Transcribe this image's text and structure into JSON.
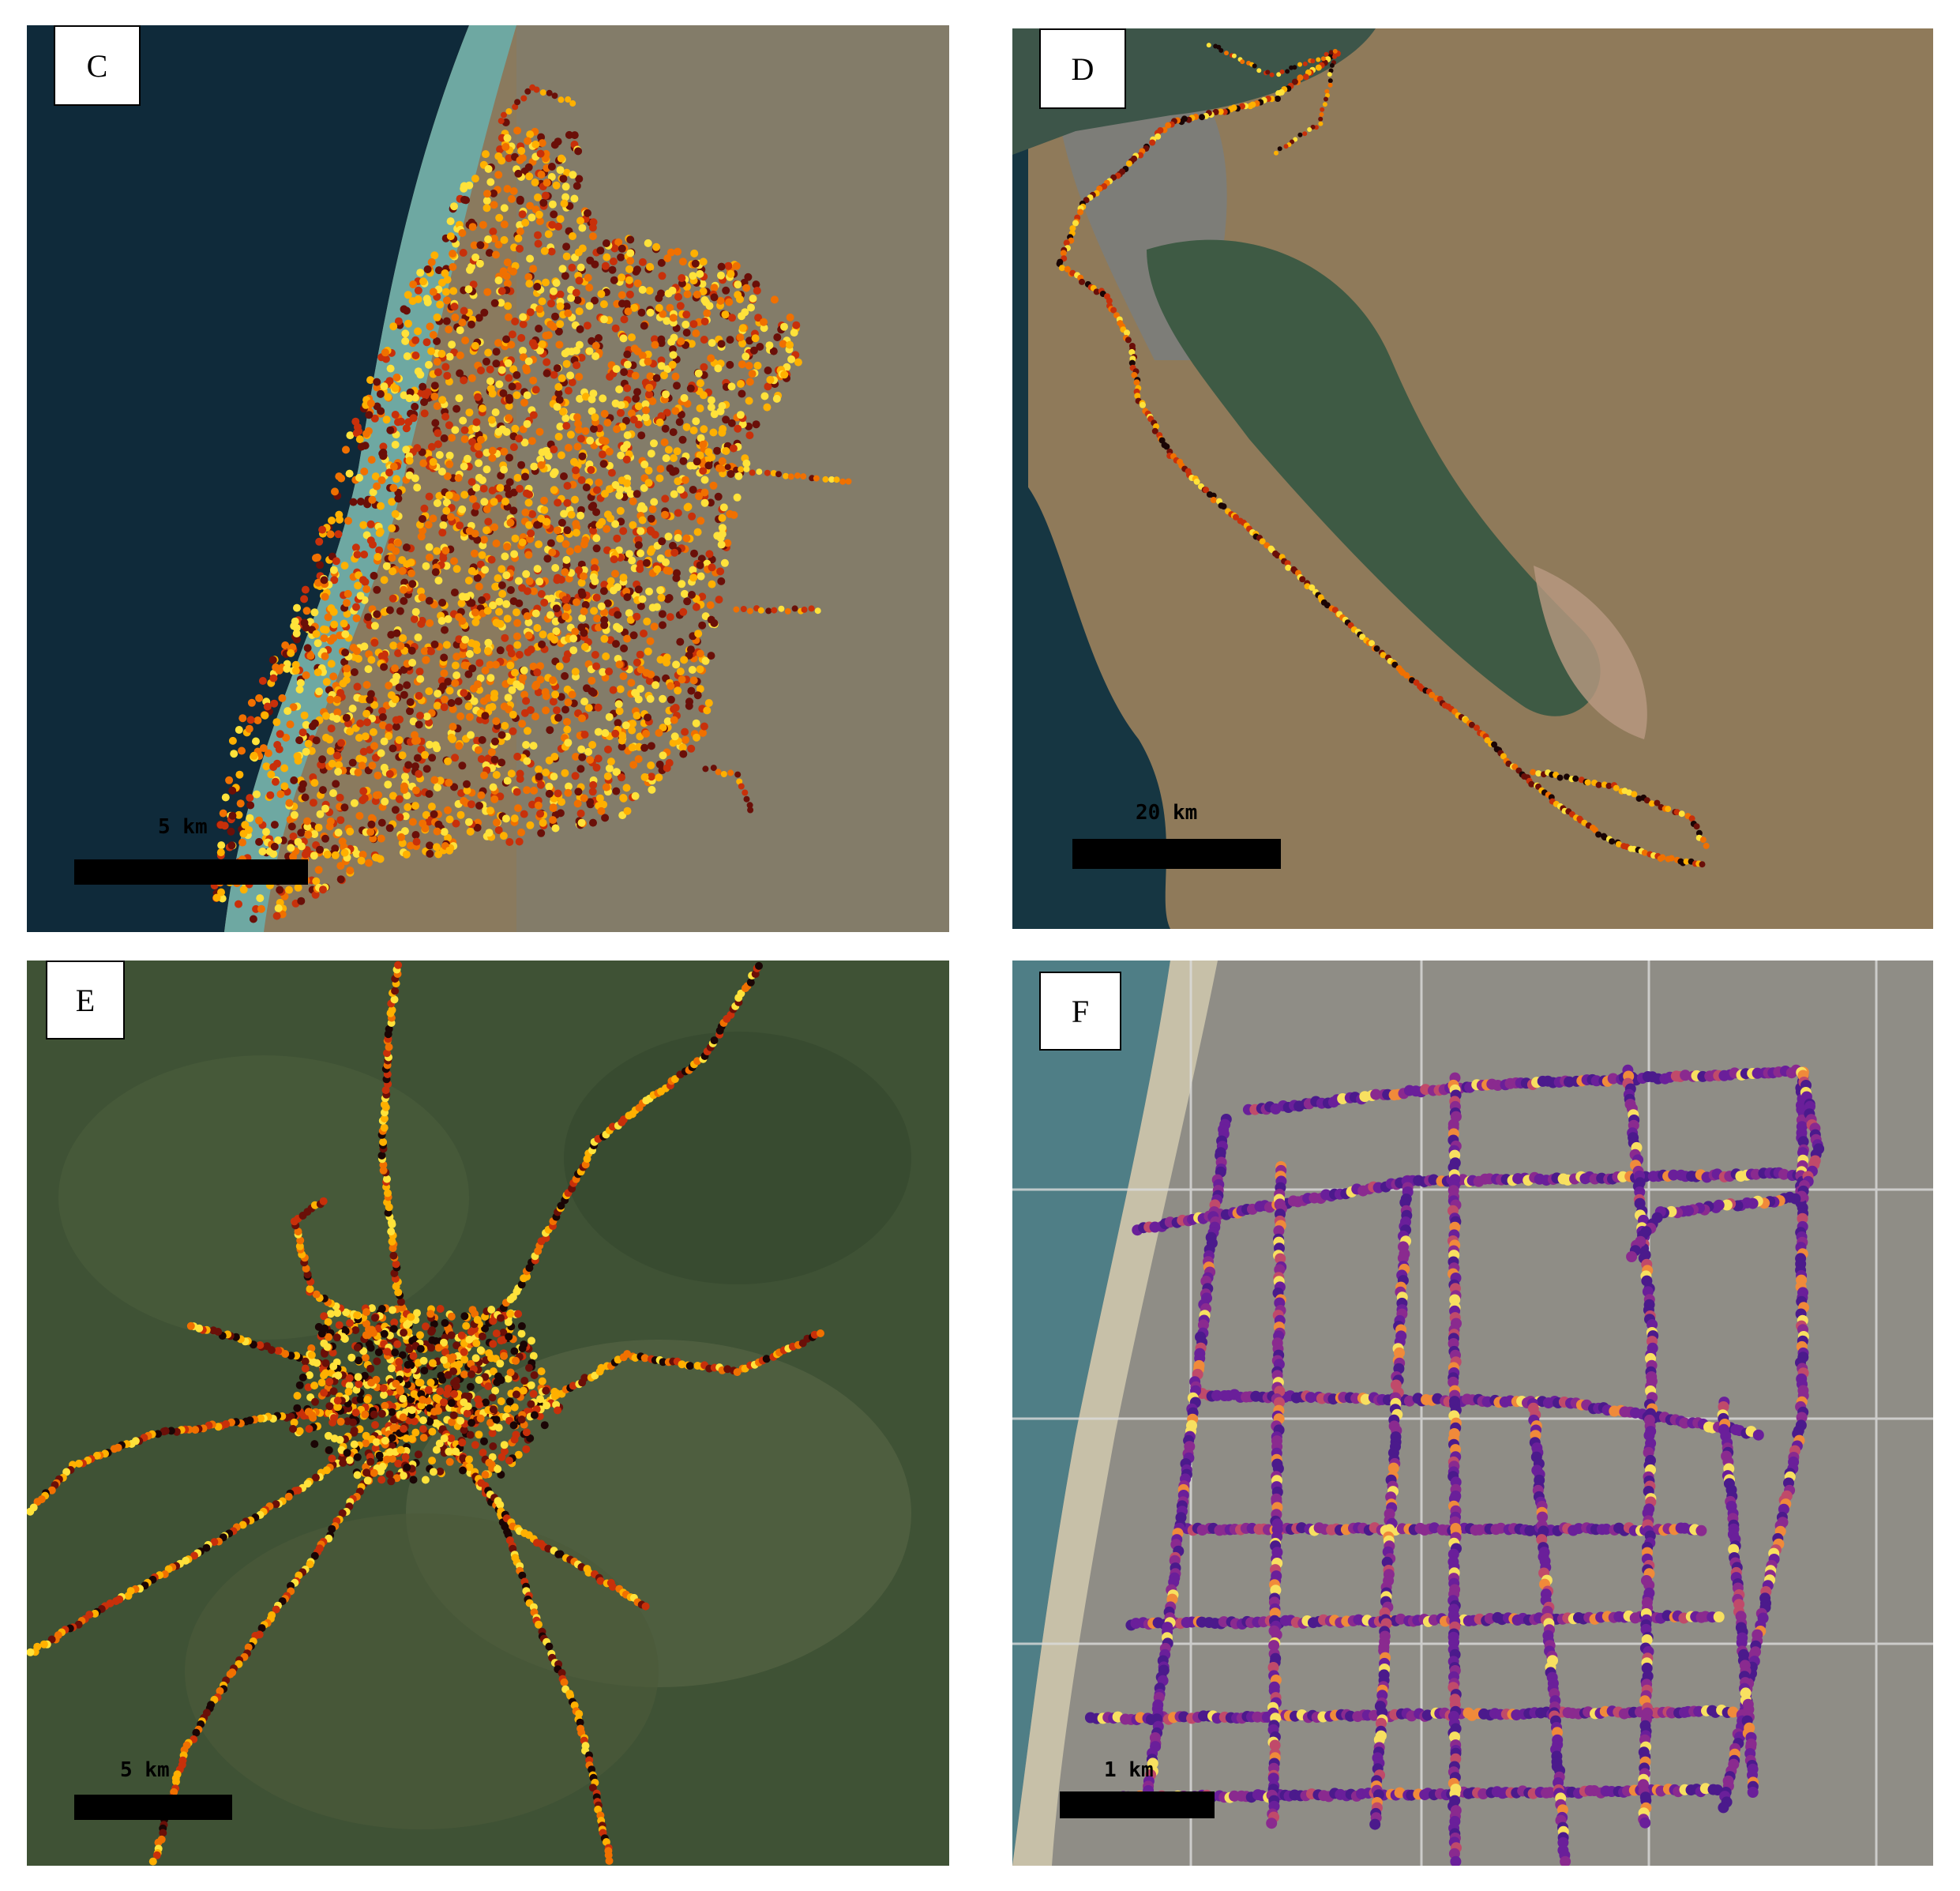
{
  "panels": [
    {
      "label": "C",
      "scale_label": "5 km",
      "colormap": "heat-yellow-red-black"
    },
    {
      "label": "D",
      "scale_label": "20 km",
      "colormap": "heat-yellow-red-black"
    },
    {
      "label": "E",
      "scale_label": "5 km",
      "colormap": "heat-yellow-red-black"
    },
    {
      "label": "F",
      "scale_label": "1 km",
      "colormap": "plasma-purple-yellow"
    }
  ],
  "colors": {
    "sea_dark": "#0f2a3a",
    "shore_turquoise": "#7fb8b0",
    "land_brown": "#8a7657",
    "bay_green": "#3f5a42",
    "forest_green": "#3f5235",
    "urban_gray": "#8c8c84",
    "heat": [
      "#ffe23a",
      "#ffb000",
      "#f07000",
      "#c8300a",
      "#6a0f08",
      "#1a0505"
    ],
    "plasma": [
      "#4b1a8c",
      "#6a1f9a",
      "#8a2a8f",
      "#c04a6a",
      "#f08a3a",
      "#f8e060"
    ]
  }
}
